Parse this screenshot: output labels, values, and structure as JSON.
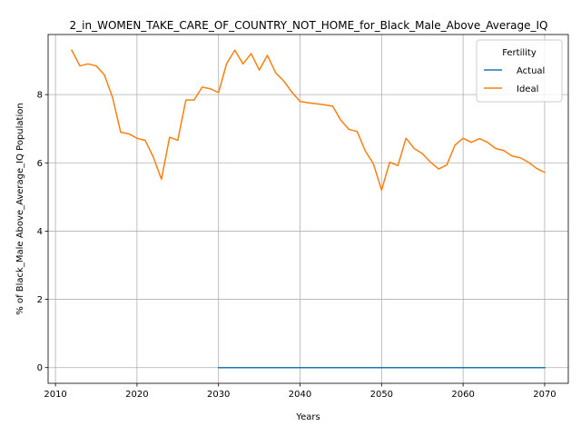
{
  "chart_data": {
    "type": "line",
    "title": "2_in_WOMEN_TAKE_CARE_OF_COUNTRY_NOT_HOME_for_Black_Male_Above_Average_IQ",
    "xlabel": "Years",
    "ylabel": "% of Black_Male Above_Average_IQ Population",
    "xlim": [
      2009.1,
      2072.9
    ],
    "ylim": [
      -0.46,
      9.76
    ],
    "xticks": [
      2010,
      2020,
      2030,
      2040,
      2050,
      2060,
      2070
    ],
    "yticks": [
      0,
      2,
      4,
      6,
      8
    ],
    "grid": true,
    "legend": {
      "title": "Fertility",
      "placement": "top-right",
      "entries": [
        "Actual",
        "Ideal"
      ]
    },
    "series": [
      {
        "name": "Actual",
        "color": "#1f77b4",
        "x": [
          2030,
          2031,
          2032,
          2033,
          2034,
          2035,
          2036,
          2037,
          2038,
          2039,
          2040,
          2041,
          2042,
          2043,
          2044,
          2045,
          2046,
          2047,
          2048,
          2049,
          2050,
          2051,
          2052,
          2053,
          2054,
          2055,
          2056,
          2057,
          2058,
          2059,
          2060,
          2061,
          2062,
          2063,
          2064,
          2065,
          2066,
          2067,
          2068,
          2069,
          2070
        ],
        "y": [
          0,
          0,
          0,
          0,
          0,
          0,
          0,
          0,
          0,
          0,
          0,
          0,
          0,
          0,
          0,
          0,
          0,
          0,
          0,
          0,
          0,
          0,
          0,
          0,
          0,
          0,
          0,
          0,
          0,
          0,
          0,
          0,
          0,
          0,
          0,
          0,
          0,
          0,
          0,
          0,
          0
        ]
      },
      {
        "name": "Ideal",
        "color": "#ff7f0e",
        "x": [
          2012,
          2013,
          2014,
          2015,
          2016,
          2017,
          2018,
          2019,
          2020,
          2021,
          2022,
          2023,
          2024,
          2025,
          2026,
          2027,
          2028,
          2029,
          2030,
          2031,
          2032,
          2033,
          2034,
          2035,
          2036,
          2037,
          2038,
          2039,
          2040,
          2041,
          2042,
          2043,
          2044,
          2045,
          2046,
          2047,
          2048,
          2049,
          2050,
          2051,
          2052,
          2053,
          2054,
          2055,
          2056,
          2057,
          2058,
          2059,
          2060,
          2061,
          2062,
          2063,
          2064,
          2065,
          2066,
          2067,
          2068,
          2069,
          2070
        ],
        "y": [
          9.3,
          8.84,
          8.9,
          8.84,
          8.58,
          7.92,
          6.9,
          6.85,
          6.72,
          6.66,
          6.17,
          5.52,
          6.75,
          6.66,
          7.84,
          7.84,
          8.22,
          8.17,
          8.06,
          8.91,
          9.3,
          8.9,
          9.2,
          8.72,
          9.15,
          8.64,
          8.4,
          8.07,
          7.8,
          7.76,
          7.73,
          7.7,
          7.66,
          7.25,
          6.98,
          6.92,
          6.35,
          5.97,
          5.2,
          6.02,
          5.92,
          6.72,
          6.42,
          6.27,
          6.02,
          5.82,
          5.94,
          6.52,
          6.72,
          6.6,
          6.71,
          6.6,
          6.42,
          6.36,
          6.2,
          6.15,
          6.02,
          5.84,
          5.72
        ]
      }
    ]
  }
}
